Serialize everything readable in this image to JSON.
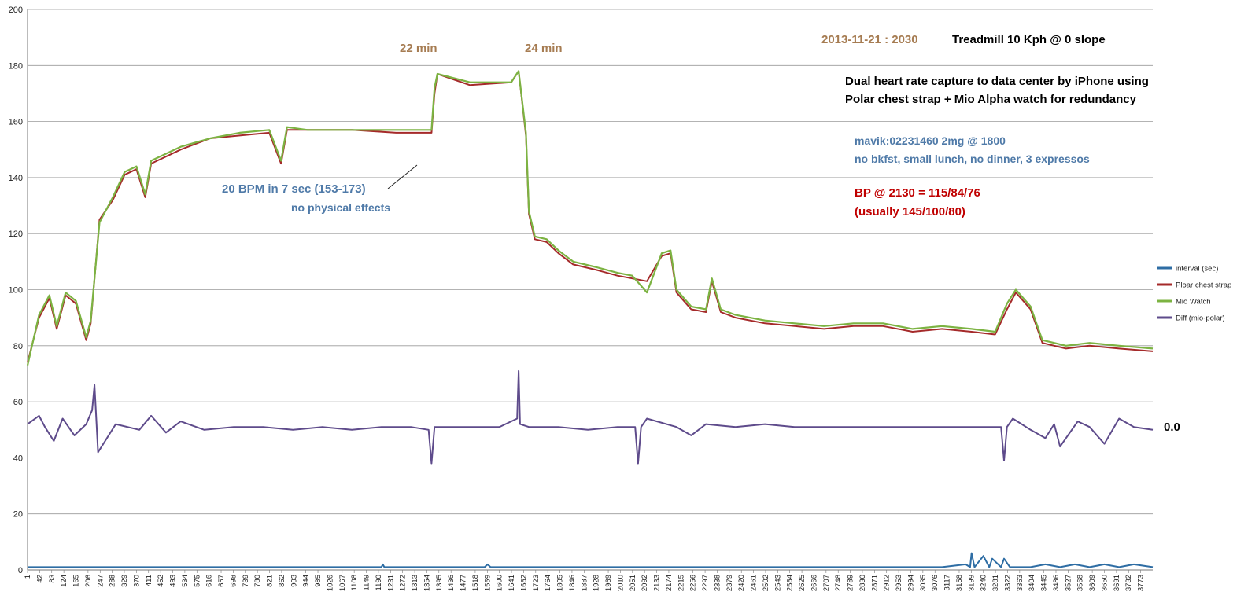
{
  "chart_data": {
    "type": "line",
    "title": "",
    "xlabel": "",
    "ylabel": "",
    "ylim": [
      0,
      200
    ],
    "yticks": [
      0,
      20,
      40,
      60,
      80,
      100,
      120,
      140,
      160,
      180,
      200
    ],
    "x_range": [
      1,
      3814
    ],
    "x_tick_labels": [
      "1",
      "42",
      "83",
      "124",
      "165",
      "206",
      "247",
      "288",
      "329",
      "370",
      "411",
      "452",
      "493",
      "534",
      "575",
      "616",
      "657",
      "698",
      "739",
      "780",
      "821",
      "862",
      "903",
      "944",
      "985",
      "1026",
      "1067",
      "1108",
      "1149",
      "1190",
      "1231",
      "1272",
      "1313",
      "1354",
      "1395",
      "1436",
      "1477",
      "1518",
      "1559",
      "1600",
      "1641",
      "1682",
      "1723",
      "1764",
      "1805",
      "1846",
      "1887",
      "1928",
      "1969",
      "2010",
      "2051",
      "2092",
      "2133",
      "2174",
      "2215",
      "2256",
      "2297",
      "2338",
      "2379",
      "2420",
      "2461",
      "2502",
      "2543",
      "2584",
      "2625",
      "2666",
      "2707",
      "2748",
      "2789",
      "2830",
      "2871",
      "2912",
      "2953",
      "2994",
      "3035",
      "3076",
      "3117",
      "3158",
      "3199",
      "3240",
      "3281",
      "3322",
      "3363",
      "3404",
      "3445",
      "3486",
      "3527",
      "3568",
      "3609",
      "3650",
      "3691",
      "3732",
      "3773"
    ],
    "grid": true,
    "legend_position": "right",
    "series": [
      {
        "name": "interval (sec)",
        "color": "#2e6da4",
        "x": [
          1,
          500,
          1000,
          1200,
          1205,
          1210,
          1550,
          1560,
          1570,
          1580,
          2000,
          2400,
          2800,
          3100,
          3180,
          3195,
          3200,
          3210,
          3240,
          3260,
          3270,
          3300,
          3310,
          3330,
          3400,
          3450,
          3500,
          3550,
          3600,
          3650,
          3700,
          3750,
          3814
        ],
        "y": [
          1,
          1,
          1,
          1,
          2,
          1,
          1,
          2,
          1,
          1,
          1,
          1,
          1,
          1,
          2,
          1,
          6,
          1,
          5,
          1,
          4,
          1,
          4,
          1,
          1,
          2,
          1,
          2,
          1,
          2,
          1,
          2,
          1
        ]
      },
      {
        "name": "Ploar chest strap",
        "color": "#a52a2a",
        "x": [
          1,
          40,
          75,
          100,
          130,
          165,
          200,
          215,
          245,
          290,
          330,
          370,
          400,
          420,
          440,
          520,
          620,
          720,
          820,
          860,
          880,
          950,
          1100,
          1250,
          1370,
          1380,
          1390,
          1500,
          1640,
          1665,
          1690,
          1700,
          1720,
          1760,
          1800,
          1850,
          1930,
          2000,
          2050,
          2100,
          2150,
          2180,
          2200,
          2250,
          2300,
          2320,
          2350,
          2400,
          2500,
          2600,
          2700,
          2800,
          2900,
          3000,
          3100,
          3200,
          3280,
          3320,
          3350,
          3400,
          3440,
          3480,
          3520,
          3600,
          3700,
          3814
        ],
        "y": [
          74,
          90,
          97,
          86,
          98,
          95,
          82,
          88,
          125,
          132,
          141,
          143,
          133,
          145,
          146,
          150,
          154,
          155,
          156,
          145,
          157,
          157,
          157,
          156,
          156,
          170,
          177,
          173,
          174,
          178,
          155,
          127,
          118,
          117,
          113,
          109,
          107,
          105,
          104,
          103,
          112,
          113,
          99,
          93,
          92,
          103,
          92,
          90,
          88,
          87,
          86,
          87,
          87,
          85,
          86,
          85,
          84,
          93,
          99,
          93,
          81,
          80,
          79,
          80,
          79,
          78
        ]
      },
      {
        "name": "Mio Watch",
        "color": "#7cb342",
        "x": [
          1,
          40,
          75,
          100,
          130,
          165,
          200,
          215,
          245,
          290,
          330,
          370,
          400,
          420,
          440,
          520,
          620,
          720,
          820,
          860,
          880,
          950,
          1100,
          1250,
          1370,
          1380,
          1390,
          1500,
          1640,
          1665,
          1690,
          1700,
          1720,
          1760,
          1800,
          1850,
          1930,
          2000,
          2050,
          2100,
          2150,
          2180,
          2200,
          2250,
          2300,
          2320,
          2350,
          2400,
          2500,
          2600,
          2700,
          2800,
          2900,
          3000,
          3100,
          3200,
          3280,
          3320,
          3350,
          3400,
          3440,
          3480,
          3520,
          3600,
          3700,
          3814
        ],
        "y": [
          73,
          91,
          98,
          87,
          99,
          96,
          83,
          89,
          124,
          133,
          142,
          144,
          134,
          146,
          147,
          151,
          154,
          156,
          157,
          146,
          158,
          157,
          157,
          157,
          157,
          172,
          177,
          174,
          174,
          178,
          156,
          128,
          119,
          118,
          114,
          110,
          108,
          106,
          105,
          99,
          113,
          114,
          100,
          94,
          93,
          104,
          93,
          91,
          89,
          88,
          87,
          88,
          88,
          86,
          87,
          86,
          85,
          95,
          100,
          94,
          82,
          81,
          80,
          81,
          80,
          79
        ]
      },
      {
        "name": "Diff (mio-polar)",
        "color": "#5e4b8b",
        "x": [
          1,
          40,
          60,
          90,
          120,
          160,
          200,
          220,
          228,
          240,
          300,
          380,
          420,
          470,
          520,
          600,
          700,
          800,
          900,
          1000,
          1100,
          1200,
          1300,
          1360,
          1370,
          1380,
          1450,
          1600,
          1660,
          1665,
          1670,
          1700,
          1800,
          1900,
          2000,
          2060,
          2070,
          2080,
          2100,
          2200,
          2250,
          2300,
          2400,
          2500,
          2600,
          2700,
          2800,
          2900,
          3000,
          3100,
          3200,
          3300,
          3310,
          3320,
          3340,
          3400,
          3450,
          3480,
          3500,
          3560,
          3600,
          3650,
          3700,
          3750,
          3814
        ],
        "y": [
          52,
          55,
          51,
          46,
          54,
          48,
          52,
          57,
          66,
          42,
          52,
          50,
          55,
          49,
          53,
          50,
          51,
          51,
          50,
          51,
          50,
          51,
          51,
          50,
          38,
          51,
          51,
          51,
          54,
          71,
          52,
          51,
          51,
          50,
          51,
          51,
          38,
          51,
          54,
          51,
          48,
          52,
          51,
          52,
          51,
          51,
          51,
          51,
          51,
          51,
          51,
          51,
          39,
          51,
          54,
          50,
          47,
          52,
          44,
          53,
          51,
          45,
          54,
          51,
          50
        ]
      }
    ],
    "annotations": {
      "date": "2013-11-21 : 2030",
      "treadmill": "Treadmill 10 Kph @ 0 slope",
      "dual_line1": "Dual heart rate capture to data center by iPhone using",
      "dual_line2": "Polar chest strap + Mio Alpha watch for redundancy",
      "mavik": "mavik:02231460 2mg @ 1800",
      "diet": "no bkfst, small lunch, no dinner, 3 expressos",
      "bp": "BP @ 2130 = 115/84/76",
      "usual": "(usually 145/100/80)",
      "bpm": "20 BPM in 7 sec (153-173)",
      "effects": "no physical effects",
      "min22": "22 min",
      "min24": "24 min",
      "diff_value": "0.0"
    }
  }
}
